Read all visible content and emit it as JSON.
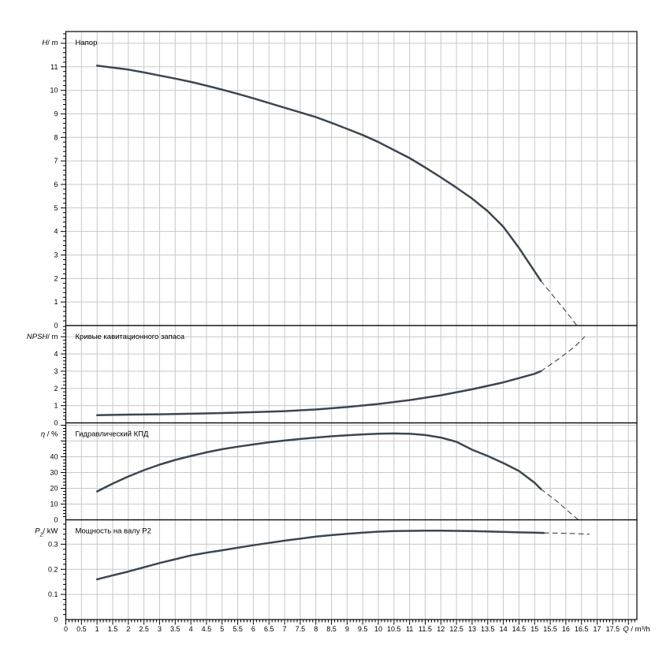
{
  "chart_data": {
    "type": "line",
    "description": "Pump performance curves: head, NPSH, hydraulic efficiency and shaft power versus flow rate",
    "colors": {
      "curve": "#3c4650",
      "grid": "#c8c8c8",
      "axis": "#000000",
      "background": "#ffffff",
      "text": "#000000"
    },
    "x_axis": {
      "symbol": "Q",
      "unit_label": " / m³/h",
      "min": 0,
      "max": 17.5,
      "major_step": 0.5,
      "minor_step": 0.1,
      "tick_labels": [
        "0",
        "0.5",
        "1",
        "1.5",
        "2",
        "2.5",
        "3",
        "3.5",
        "4",
        "4.5",
        "5",
        "5.5",
        "6",
        "6.5",
        "7",
        "7.5",
        "8",
        "8.5",
        "9",
        "9.5",
        "10",
        "10.5",
        "11",
        "11.5",
        "12",
        "12.5",
        "13",
        "13.5",
        "14",
        "14.5",
        "15",
        "15.5",
        "16",
        "16.5",
        "17",
        "17.5"
      ]
    },
    "panels": [
      {
        "id": "head",
        "axis_symbol": "H",
        "axis_sub": "",
        "axis_unit": "/ m",
        "title": "Напор",
        "y_labels": [
          "0",
          "1",
          "2",
          "3",
          "4",
          "5",
          "6",
          "7",
          "8",
          "9",
          "10",
          "11"
        ],
        "y_major": 1,
        "y_minor": 0.2,
        "y_max": 12.5,
        "series": [
          {
            "name": "head-curve",
            "style": "solid",
            "points": [
              [
                1,
                11.05
              ],
              [
                1.5,
                10.97
              ],
              [
                2,
                10.88
              ],
              [
                2.5,
                10.76
              ],
              [
                3,
                10.63
              ],
              [
                3.5,
                10.5
              ],
              [
                4,
                10.36
              ],
              [
                4.5,
                10.2
              ],
              [
                5,
                10.03
              ],
              [
                5.5,
                9.85
              ],
              [
                6,
                9.66
              ],
              [
                6.5,
                9.46
              ],
              [
                7,
                9.26
              ],
              [
                7.5,
                9.06
              ],
              [
                8,
                8.86
              ],
              [
                8.5,
                8.62
              ],
              [
                9,
                8.36
              ],
              [
                9.5,
                8.1
              ],
              [
                10,
                7.8
              ],
              [
                10.5,
                7.46
              ],
              [
                11,
                7.12
              ],
              [
                11.5,
                6.72
              ],
              [
                12,
                6.3
              ],
              [
                12.5,
                5.86
              ],
              [
                13,
                5.4
              ],
              [
                13.5,
                4.86
              ],
              [
                14,
                4.2
              ],
              [
                14.5,
                3.3
              ],
              [
                15,
                2.3
              ],
              [
                15.2,
                1.9
              ]
            ]
          },
          {
            "name": "head-curve-extrapolated",
            "style": "dashed",
            "points": [
              [
                15.2,
                1.9
              ],
              [
                15.6,
                1.25
              ],
              [
                16,
                0.6
              ],
              [
                16.35,
                0
              ]
            ]
          }
        ]
      },
      {
        "id": "npsh",
        "axis_symbol": "NPSH",
        "axis_sub": "",
        "axis_unit": "/ m",
        "title": "Кривые кавитационного запаса",
        "y_labels": [
          "0",
          "1",
          "2",
          "3",
          "4"
        ],
        "y_major": 1,
        "y_minor": 0.2,
        "y_max": 5.65,
        "series": [
          {
            "name": "npsh-curve",
            "style": "solid",
            "points": [
              [
                1,
                0.45
              ],
              [
                2,
                0.48
              ],
              [
                3,
                0.5
              ],
              [
                4,
                0.53
              ],
              [
                5,
                0.57
              ],
              [
                6,
                0.62
              ],
              [
                7,
                0.68
              ],
              [
                8,
                0.78
              ],
              [
                9,
                0.92
              ],
              [
                10,
                1.1
              ],
              [
                11,
                1.32
              ],
              [
                12,
                1.6
              ],
              [
                13,
                1.95
              ],
              [
                14,
                2.35
              ],
              [
                14.5,
                2.6
              ],
              [
                15,
                2.85
              ],
              [
                15.2,
                3.0
              ]
            ]
          },
          {
            "name": "npsh-curve-extrapolated",
            "style": "dashed",
            "points": [
              [
                15.2,
                3.0
              ],
              [
                15.8,
                3.75
              ],
              [
                16.3,
                4.45
              ],
              [
                16.6,
                5.0
              ]
            ]
          }
        ]
      },
      {
        "id": "efficiency",
        "axis_symbol": "η",
        "axis_sub": "",
        "axis_unit": " / %",
        "title": "Гидравлический КПД",
        "y_labels": [
          "0",
          "10",
          "20",
          "30",
          "40"
        ],
        "y_major": 10,
        "y_minor": 2,
        "y_max": 61.5,
        "series": [
          {
            "name": "efficiency-curve",
            "style": "solid",
            "points": [
              [
                1,
                18
              ],
              [
                1.5,
                23
              ],
              [
                2,
                27.5
              ],
              [
                2.5,
                31.5
              ],
              [
                3,
                35
              ],
              [
                3.5,
                38
              ],
              [
                4,
                40.5
              ],
              [
                4.5,
                42.8
              ],
              [
                5,
                44.8
              ],
              [
                5.5,
                46.4
              ],
              [
                6,
                47.8
              ],
              [
                6.5,
                49.2
              ],
              [
                7,
                50.3
              ],
              [
                7.5,
                51.3
              ],
              [
                8,
                52.2
              ],
              [
                8.5,
                53
              ],
              [
                9,
                53.6
              ],
              [
                9.5,
                54.2
              ],
              [
                10,
                54.6
              ],
              [
                10.5,
                54.8
              ],
              [
                11,
                54.6
              ],
              [
                11.5,
                53.8
              ],
              [
                12,
                52.2
              ],
              [
                12.5,
                49.5
              ],
              [
                13,
                44.5
              ],
              [
                13.5,
                40.5
              ],
              [
                14,
                36
              ],
              [
                14.5,
                31
              ],
              [
                15,
                23.5
              ],
              [
                15.2,
                19.5
              ]
            ]
          },
          {
            "name": "efficiency-curve-extrapolated",
            "style": "dashed",
            "points": [
              [
                15.2,
                19.5
              ],
              [
                15.7,
                12
              ],
              [
                16.1,
                5
              ],
              [
                16.4,
                0
              ]
            ]
          }
        ]
      },
      {
        "id": "power",
        "axis_symbol": "P",
        "axis_sub": "2",
        "axis_unit": "/ kW",
        "title": "Мощность на валу P2",
        "y_labels": [
          "0",
          "0.1",
          "0.2",
          "0.3"
        ],
        "y_major": 0.1,
        "y_minor": 0.02,
        "y_max": 0.397,
        "series": [
          {
            "name": "power-curve",
            "style": "solid",
            "points": [
              [
                1,
                0.16
              ],
              [
                1.5,
                0.176
              ],
              [
                2,
                0.191
              ],
              [
                2.5,
                0.208
              ],
              [
                3,
                0.225
              ],
              [
                3.5,
                0.24
              ],
              [
                4,
                0.255
              ],
              [
                4.5,
                0.266
              ],
              [
                5,
                0.276
              ],
              [
                5.5,
                0.286
              ],
              [
                6,
                0.296
              ],
              [
                6.5,
                0.305
              ],
              [
                7,
                0.314
              ],
              [
                7.5,
                0.322
              ],
              [
                8,
                0.33
              ],
              [
                8.5,
                0.336
              ],
              [
                9,
                0.341
              ],
              [
                9.5,
                0.346
              ],
              [
                10,
                0.35
              ],
              [
                10.5,
                0.352
              ],
              [
                11,
                0.353
              ],
              [
                11.5,
                0.354
              ],
              [
                12,
                0.354
              ],
              [
                12.5,
                0.353
              ],
              [
                13,
                0.352
              ],
              [
                13.5,
                0.351
              ],
              [
                14,
                0.349
              ],
              [
                14.5,
                0.347
              ],
              [
                15,
                0.346
              ],
              [
                15.3,
                0.345
              ]
            ]
          },
          {
            "name": "power-curve-extrapolated",
            "style": "dashed",
            "points": [
              [
                15.3,
                0.345
              ],
              [
                15.8,
                0.344
              ],
              [
                16.3,
                0.342
              ],
              [
                16.75,
                0.34
              ]
            ]
          }
        ]
      }
    ]
  }
}
